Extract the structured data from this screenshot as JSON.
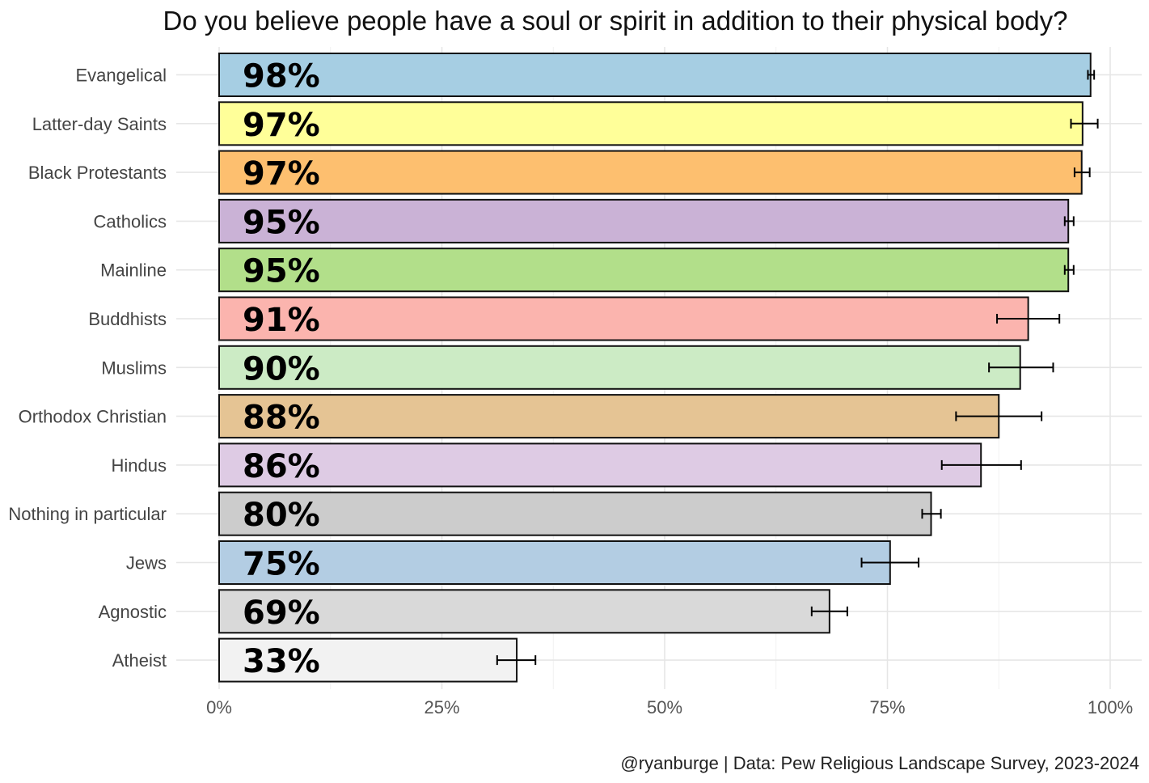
{
  "chart_data": {
    "type": "bar",
    "orientation": "horizontal",
    "title": "Do you believe people have a soul or spirit in addition to their physical body?",
    "caption": "@ryanburge | Data: Pew Religious Landscape Survey, 2023-2024",
    "xlabel": "",
    "ylabel": "",
    "xlim": [
      0,
      100
    ],
    "x_ticks": [
      0,
      25,
      50,
      75,
      100
    ],
    "x_tick_labels": [
      "0%",
      "25%",
      "50%",
      "75%",
      "100%"
    ],
    "grid": true,
    "bars": [
      {
        "category": "Evangelical",
        "value": 97.8,
        "label": "98%",
        "err_low": 97.5,
        "err_high": 98.2,
        "color": "#a6cee3"
      },
      {
        "category": "Latter-day Saints",
        "value": 96.9,
        "label": "97%",
        "err_low": 95.6,
        "err_high": 98.6,
        "color": "#ffff99"
      },
      {
        "category": "Black Protestants",
        "value": 96.8,
        "label": "97%",
        "err_low": 96.0,
        "err_high": 97.7,
        "color": "#fdbf6f"
      },
      {
        "category": "Catholics",
        "value": 95.3,
        "label": "95%",
        "err_low": 94.9,
        "err_high": 95.9,
        "color": "#cab2d6"
      },
      {
        "category": "Mainline",
        "value": 95.3,
        "label": "95%",
        "err_low": 94.9,
        "err_high": 95.9,
        "color": "#b2df8a"
      },
      {
        "category": "Buddhists",
        "value": 90.8,
        "label": "91%",
        "err_low": 87.3,
        "err_high": 94.3,
        "color": "#fbb4ae"
      },
      {
        "category": "Muslims",
        "value": 89.9,
        "label": "90%",
        "err_low": 86.4,
        "err_high": 93.6,
        "color": "#ccebc5"
      },
      {
        "category": "Orthodox Christian",
        "value": 87.5,
        "label": "88%",
        "err_low": 82.7,
        "err_high": 92.3,
        "color": "#e5c494"
      },
      {
        "category": "Hindus",
        "value": 85.5,
        "label": "86%",
        "err_low": 81.1,
        "err_high": 90.0,
        "color": "#decbe4"
      },
      {
        "category": "Nothing in particular",
        "value": 79.9,
        "label": "80%",
        "err_low": 78.9,
        "err_high": 81.0,
        "color": "#cccccc"
      },
      {
        "category": "Jews",
        "value": 75.3,
        "label": "75%",
        "err_low": 72.1,
        "err_high": 78.5,
        "color": "#b3cde3"
      },
      {
        "category": "Agnostic",
        "value": 68.5,
        "label": "69%",
        "err_low": 66.5,
        "err_high": 70.5,
        "color": "#d9d9d9"
      },
      {
        "category": "Atheist",
        "value": 33.4,
        "label": "33%",
        "err_low": 31.2,
        "err_high": 35.5,
        "color": "#f2f2f2"
      }
    ]
  }
}
